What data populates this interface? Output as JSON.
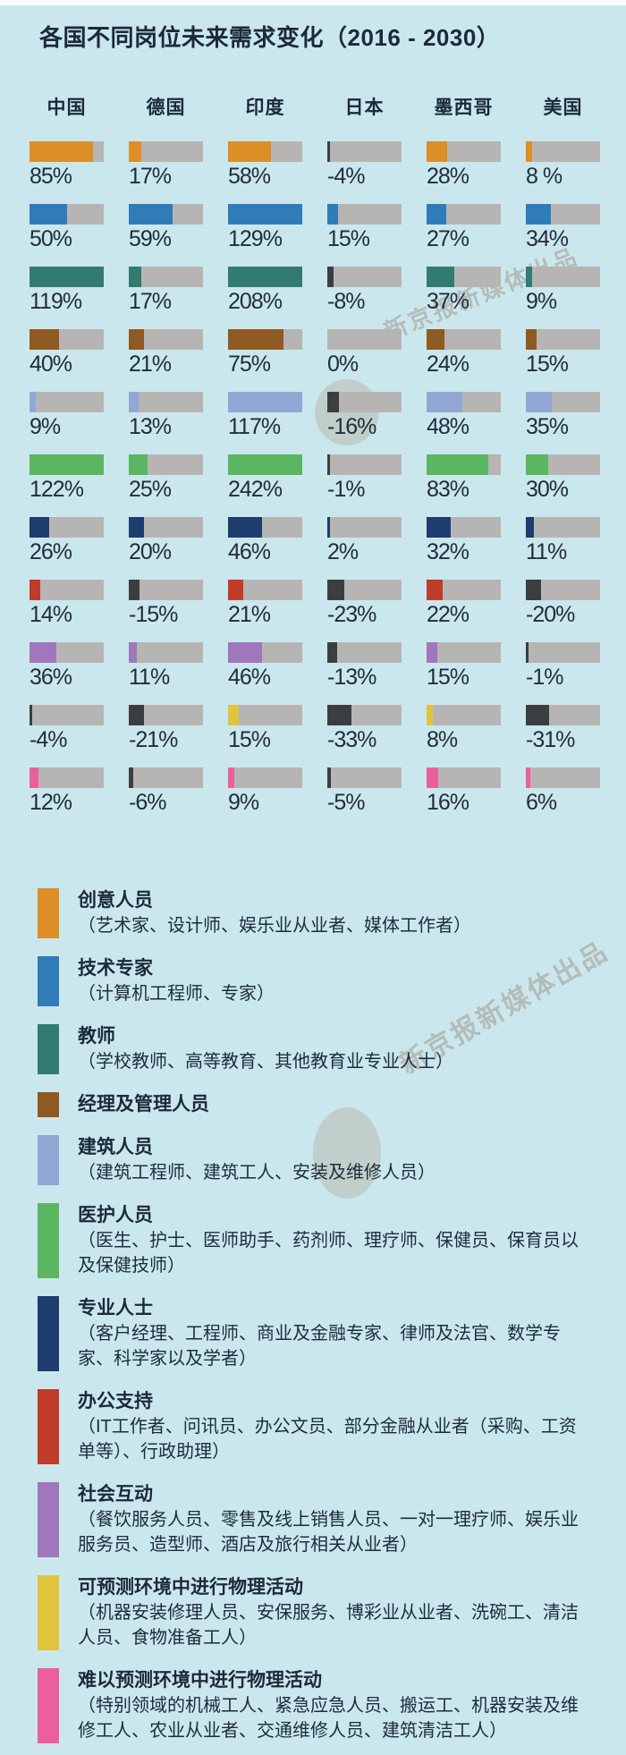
{
  "page": {
    "title": "各国不同岗位未来需求变化（2016 - 2030）",
    "watermark_text": "新京报新媒体出品",
    "background_color": "#cbe7ee"
  },
  "chart_data": {
    "type": "bar",
    "title": "各国不同岗位未来需求变化（2016 - 2030）",
    "xlabel": "",
    "ylabel": "",
    "unit": "%",
    "bar_scale_max": 100,
    "track_color": "#b7b5b3",
    "negative_color": "#3b3e41",
    "legend_position": "bottom",
    "categories": [
      "中国",
      "德国",
      "印度",
      "日本",
      "墨西哥",
      "美国"
    ],
    "series": [
      {
        "name": "创意人员",
        "color": "#dd8e26",
        "values": [
          85,
          17,
          58,
          -4,
          28,
          8
        ],
        "labels": [
          "85%",
          "17%",
          "58%",
          "-4%",
          "28%",
          "8 %"
        ]
      },
      {
        "name": "技术专家",
        "color": "#2f7cb9",
        "values": [
          50,
          59,
          129,
          15,
          27,
          34
        ],
        "labels": [
          "50%",
          "59%",
          "129%",
          "15%",
          "27%",
          "34%"
        ]
      },
      {
        "name": "教师",
        "color": "#337a70",
        "values": [
          119,
          17,
          208,
          -8,
          37,
          9
        ],
        "labels": [
          "119%",
          "17%",
          "208%",
          "-8%",
          "37%",
          "9%"
        ]
      },
      {
        "name": "经理及管理人员",
        "color": "#8f5a22",
        "values": [
          40,
          21,
          75,
          0,
          24,
          15
        ],
        "labels": [
          "40%",
          "21%",
          "75%",
          "0%",
          "24%",
          "15%"
        ]
      },
      {
        "name": "建筑人员",
        "color": "#93a7d5",
        "values": [
          9,
          13,
          117,
          -16,
          48,
          35
        ],
        "labels": [
          "9%",
          "13%",
          "117%",
          "-16%",
          "48%",
          "35%"
        ]
      },
      {
        "name": "医护人员",
        "color": "#5bb661",
        "values": [
          122,
          25,
          242,
          -1,
          83,
          30
        ],
        "labels": [
          "122%",
          "25%",
          "242%",
          "-1%",
          "83%",
          "30%"
        ]
      },
      {
        "name": "专业人士",
        "color": "#1e3c6e",
        "values": [
          26,
          20,
          46,
          2,
          32,
          11
        ],
        "labels": [
          "26%",
          "20%",
          "46%",
          "2%",
          "32%",
          "11%"
        ]
      },
      {
        "name": "办公支持",
        "color": "#be3c28",
        "values": [
          14,
          -15,
          21,
          -23,
          22,
          -20
        ],
        "labels": [
          "14%",
          "-15%",
          "21%",
          "-23%",
          "22%",
          "-20%"
        ]
      },
      {
        "name": "社会互动",
        "color": "#a076bc",
        "values": [
          36,
          11,
          46,
          -13,
          15,
          -1
        ],
        "labels": [
          "36%",
          "11%",
          "46%",
          "-13%",
          "15%",
          "-1%"
        ]
      },
      {
        "name": "可预测环境中进行物理活动",
        "color": "#e2c33e",
        "values": [
          -4,
          -21,
          15,
          -33,
          8,
          -31
        ],
        "labels": [
          "-4%",
          "-21%",
          "15%",
          "-33%",
          "8%",
          "-31%"
        ]
      },
      {
        "name": "难以预测环境中进行物理活动",
        "color": "#ed5e9c",
        "values": [
          12,
          -6,
          9,
          -5,
          16,
          6
        ],
        "labels": [
          "12%",
          "-6%",
          "9%",
          "-5%",
          "16%",
          "6%"
        ]
      }
    ]
  },
  "legend": [
    {
      "name": "创意人员",
      "desc": "（艺术家、设计师、娱乐业从业者、媒体工作者）",
      "color": "#dd8e26"
    },
    {
      "name": "技术专家",
      "desc": "（计算机工程师、专家）",
      "color": "#2f7cb9"
    },
    {
      "name": "教师",
      "desc": "（学校教师、高等教育、其他教育业专业人士）",
      "color": "#337a70"
    },
    {
      "name": "经理及管理人员",
      "desc": "",
      "color": "#8f5a22"
    },
    {
      "name": "建筑人员",
      "desc": "（建筑工程师、建筑工人、安装及维修人员）",
      "color": "#93a7d5"
    },
    {
      "name": "医护人员",
      "desc": "（医生、护士、医师助手、药剂师、理疗师、保健员、保育员以及保健技师）",
      "color": "#5bb661"
    },
    {
      "name": "专业人士",
      "desc": "（客户经理、工程师、商业及金融专家、律师及法官、数学专家、科学家以及学者）",
      "color": "#1e3c6e"
    },
    {
      "name": "办公支持",
      "desc": "（IT工作者、问讯员、办公文员、部分金融从业者（采购、工资单等）、行政助理）",
      "color": "#be3c28"
    },
    {
      "name": "社会互动",
      "desc": "（餐饮服务人员、零售及线上销售人员、一对一理疗师、娱乐业服务员、造型师、酒店及旅行相关从业者）",
      "color": "#a076bc"
    },
    {
      "name": "可预测环境中进行物理活动",
      "desc": "（机器安装修理人员、安保服务、博彩业从业者、洗碗工、清洁人员、食物准备工人）",
      "color": "#e2c33e"
    },
    {
      "name": "难以预测环境中进行物理活动",
      "desc": "（特别领域的机械工人、紧急应急人员、搬运工、机器安装及维修工人、农业从业者、交通维修人员、建筑清洁工人）",
      "color": "#ed5e9c"
    }
  ]
}
